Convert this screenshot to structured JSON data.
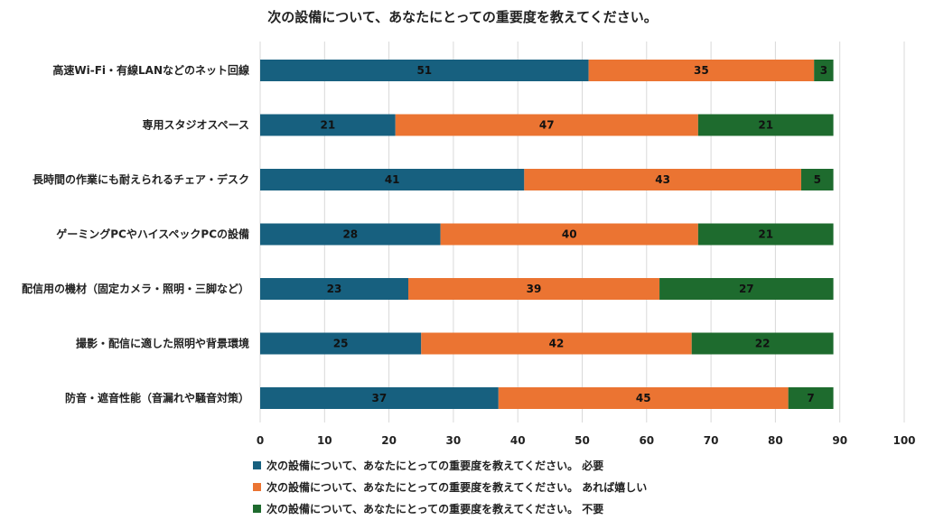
{
  "chart_data": {
    "type": "bar",
    "orientation": "horizontal",
    "stacked": true,
    "title": "次の設備について、あなたにとっての重要度を教えてください。",
    "categories": [
      "高速Wi-Fi・有線LANなどのネット回線",
      "専用スタジオスペース",
      "長時間の作業にも耐えられるチェア・デスク",
      "ゲーミングPCやハイスペックPCの設備",
      "配信用の機材（固定カメラ・照明・三脚など）",
      "撮影・配信に適した照明や背景環境",
      "防音・遮音性能（音漏れや騒音対策）"
    ],
    "series": [
      {
        "name": "次の設備について、あなたにとっての重要度を教えてください。 必要",
        "color": "#17607F",
        "values": [
          51,
          21,
          41,
          28,
          23,
          25,
          37
        ]
      },
      {
        "name": "次の設備について、あなたにとっての重要度を教えてください。 あれば嬉しい",
        "color": "#EB7432",
        "values": [
          35,
          47,
          43,
          40,
          39,
          42,
          45
        ]
      },
      {
        "name": "次の設備について、あなたにとっての重要度を教えてください。 不要",
        "color": "#1E6B2E",
        "values": [
          3,
          21,
          5,
          21,
          27,
          22,
          7
        ]
      }
    ],
    "xlim": [
      0,
      100
    ],
    "xticks": [
      "0",
      "10",
      "20",
      "30",
      "40",
      "50",
      "60",
      "70",
      "80",
      "90",
      "100"
    ],
    "grid": true,
    "legend_position": "bottom"
  }
}
